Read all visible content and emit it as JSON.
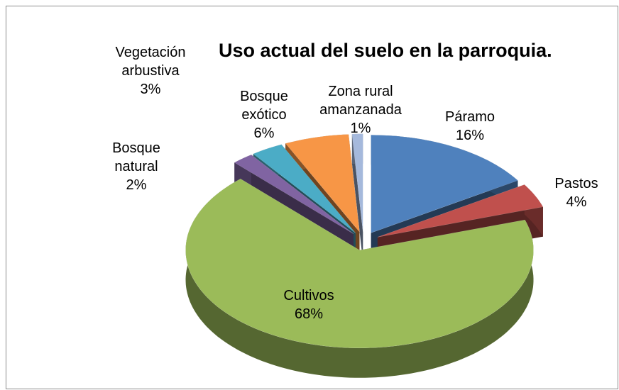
{
  "chart_data": {
    "type": "pie3d",
    "title": "Uso actual del suelo en la parroquia.",
    "categories": [
      "Páramo",
      "Pastos",
      "Cultivos",
      "Bosque\nnatural",
      "Vegetación\narbustiva",
      "Bosque\nexótico",
      "Zona rural\namanzanada"
    ],
    "values": [
      16,
      4,
      68,
      2,
      3,
      6,
      1
    ],
    "value_labels": [
      "16%",
      "4%",
      "68%",
      "2%",
      "3%",
      "6%",
      "1%"
    ],
    "colors": [
      "#4f81bd",
      "#c0504d",
      "#9bbb59",
      "#8064a2",
      "#4bacc6",
      "#f79646",
      "#a5b9dc"
    ]
  }
}
